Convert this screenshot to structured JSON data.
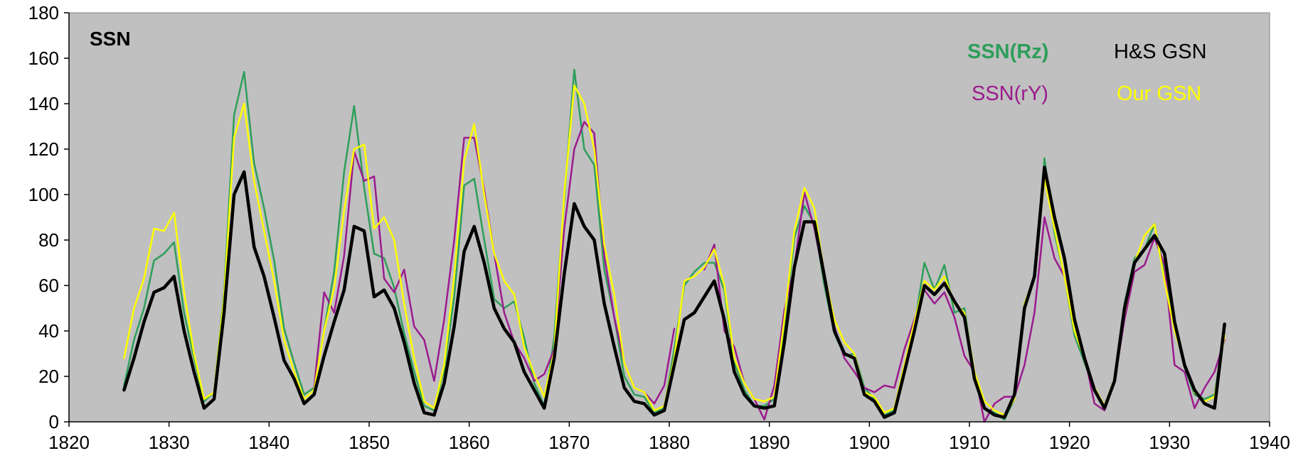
{
  "chart_data": {
    "type": "line",
    "title": "",
    "xlabel": "",
    "ylabel": "",
    "panel_label": "SSN",
    "xlim": [
      1820,
      1940
    ],
    "ylim": [
      0,
      180
    ],
    "xticks": [
      1820,
      1830,
      1840,
      1850,
      1860,
      1870,
      1880,
      1890,
      1900,
      1910,
      1920,
      1930,
      1940
    ],
    "yticks": [
      0,
      20,
      40,
      60,
      80,
      100,
      120,
      140,
      160,
      180
    ],
    "plot_background": "#c0c0c0",
    "grid": false,
    "legend": {
      "placement": "top-right",
      "entries": [
        {
          "name": "SSN(Rz)",
          "color": "#2e9e5a",
          "bold": true
        },
        {
          "name": "H&S GSN",
          "color": "#000000",
          "bold": false
        },
        {
          "name": "SSN(rY)",
          "color": "#9b1b8e",
          "bold": false
        },
        {
          "name": "Our GSN",
          "color": "#ffff00",
          "bold": false
        }
      ]
    },
    "series": [
      {
        "name": "SSN(Rz)",
        "color": "#2e9e5a",
        "width": 2.5,
        "x": [
          1825.5,
          1826.5,
          1827.5,
          1828.5,
          1829.5,
          1830.5,
          1831.5,
          1832.5,
          1833.5,
          1834.5,
          1835.5,
          1836.5,
          1837.5,
          1838.5,
          1839.5,
          1840.5,
          1841.5,
          1842.5,
          1843.5,
          1844.5,
          1845.5,
          1846.5,
          1847.5,
          1848.5,
          1849.5,
          1850.5,
          1851.5,
          1852.5,
          1853.5,
          1854.5,
          1855.5,
          1856.5,
          1857.5,
          1858.5,
          1859.5,
          1860.5,
          1861.5,
          1862.5,
          1863.5,
          1864.5,
          1865.5,
          1866.5,
          1867.5,
          1868.5,
          1869.5,
          1870.5,
          1871.5,
          1872.5,
          1873.5,
          1874.5,
          1875.5,
          1876.5,
          1877.5,
          1878.5,
          1879.5,
          1880.5,
          1881.5,
          1882.5,
          1883.5,
          1884.5,
          1885.5,
          1886.5,
          1887.5,
          1888.5,
          1889.5,
          1890.5,
          1891.5,
          1892.5,
          1893.5,
          1894.5,
          1895.5,
          1896.5,
          1897.5,
          1898.5,
          1899.5,
          1900.5,
          1901.5,
          1902.5,
          1903.5,
          1904.5,
          1905.5,
          1906.5,
          1907.5,
          1908.5,
          1909.5,
          1910.5,
          1911.5,
          1912.5,
          1913.5,
          1914.5,
          1915.5,
          1916.5,
          1917.5,
          1918.5,
          1919.5,
          1920.5,
          1921.5,
          1922.5,
          1923.5,
          1924.5,
          1925.5,
          1926.5,
          1927.5,
          1928.5,
          1929.5,
          1930.5,
          1931.5,
          1932.5,
          1933.5,
          1934.5,
          1935.5
        ],
        "y": [
          16,
          36,
          50,
          71,
          74,
          79,
          48,
          28,
          9,
          13,
          57,
          135,
          154,
          114,
          94,
          71,
          41,
          26,
          12,
          15,
          40,
          66,
          110,
          139,
          103,
          74,
          72,
          59,
          39,
          22,
          7,
          5,
          23,
          55,
          104,
          107,
          80,
          54,
          50,
          53,
          37,
          17,
          7,
          37,
          98,
          155,
          120,
          113,
          67,
          46,
          20,
          12,
          11,
          4,
          6,
          32,
          60,
          66,
          70,
          70,
          58,
          26,
          14,
          7,
          7,
          10,
          42,
          81,
          95,
          87,
          60,
          39,
          29,
          30,
          15,
          10,
          3,
          5,
          24,
          42,
          70,
          58,
          69,
          48,
          50,
          20,
          6,
          4,
          1,
          10,
          52,
          64,
          116,
          83,
          64,
          38,
          26,
          14,
          6,
          17,
          52,
          72,
          76,
          87,
          65,
          42,
          24,
          12,
          10,
          12,
          40
        ]
      },
      {
        "name": "SSN(rY)",
        "color": "#9b1b8e",
        "width": 2.5,
        "x": [
          1844.5,
          1845.5,
          1846.5,
          1847.5,
          1848.5,
          1849.5,
          1850.5,
          1851.5,
          1852.5,
          1853.5,
          1854.5,
          1855.5,
          1856.5,
          1857.5,
          1858.5,
          1859.5,
          1860.5,
          1861.5,
          1862.5,
          1863.5,
          1864.5,
          1865.5,
          1866.5,
          1867.5,
          1868.5,
          1869.5,
          1870.5,
          1871.5,
          1872.5,
          1873.5,
          1874.5,
          1875.5,
          1876.5,
          1877.5,
          1878.5,
          1879.5,
          1880.5,
          null,
          1883.5,
          1884.5,
          1885.5,
          1886.5,
          1887.5,
          1888.5,
          1889.5,
          1890.5,
          1891.5,
          1892.5,
          1893.5,
          1894.5,
          1895.5,
          1896.5,
          1897.5,
          1898.5,
          1899.5,
          1900.5,
          1901.5,
          1902.5,
          1903.5,
          1904.5,
          1905.5,
          1906.5,
          1907.5,
          1908.5,
          1909.5,
          1910.5,
          1911.5,
          1912.5,
          1913.5,
          1914.5,
          1915.5,
          1916.5,
          1917.5,
          1918.5,
          1919.5,
          1920.5,
          1921.5,
          1922.5,
          1923.5,
          1924.5,
          1925.5,
          1926.5,
          1927.5,
          1928.5,
          1929.5,
          1930.5,
          1931.5,
          1932.5,
          1933.5,
          1934.5,
          1935.5
        ],
        "y": [
          15,
          57,
          48,
          73,
          119,
          106,
          108,
          63,
          57,
          67,
          42,
          36,
          18,
          45,
          80,
          125,
          125,
          102,
          74,
          48,
          35,
          28,
          18,
          21,
          32,
          85,
          120,
          132,
          127,
          73,
          46,
          26,
          15,
          13,
          8,
          16,
          41,
          null,
          67,
          78,
          40,
          33,
          17,
          10,
          1,
          16,
          49,
          68,
          101,
          85,
          63,
          42,
          28,
          22,
          15,
          13,
          16,
          15,
          32,
          45,
          58,
          52,
          57,
          46,
          29,
          22,
          0,
          8,
          11,
          11,
          25,
          48,
          90,
          72,
          64,
          45,
          29,
          8,
          5,
          18,
          45,
          66,
          69,
          81,
          69,
          25,
          22,
          6,
          15,
          22,
          36
        ]
      },
      {
        "name": "Our GSN",
        "color": "#ffff00",
        "width": 2.5,
        "x": [
          1825.5,
          1826.5,
          1827.5,
          1828.5,
          1829.5,
          1830.5,
          1831.5,
          1832.5,
          1833.5,
          1834.5,
          1835.5,
          1836.5,
          1837.5,
          1838.5,
          1839.5,
          1840.5,
          1841.5,
          1842.5,
          1843.5,
          1844.5,
          1845.5,
          1846.5,
          1847.5,
          1848.5,
          1849.5,
          1850.5,
          1851.5,
          1852.5,
          1853.5,
          1854.5,
          1855.5,
          1856.5,
          1857.5,
          1858.5,
          1859.5,
          1860.5,
          1861.5,
          1862.5,
          1863.5,
          1864.5,
          1865.5,
          1866.5,
          1867.5,
          1868.5,
          1869.5,
          1870.5,
          1871.5,
          1872.5,
          1873.5,
          1874.5,
          1875.5,
          1876.5,
          1877.5,
          1878.5,
          1879.5,
          1880.5,
          1881.5,
          1882.5,
          1883.5,
          1884.5,
          1885.5,
          1886.5,
          1887.5,
          1888.5,
          1889.5,
          1890.5,
          1891.5,
          1892.5,
          1893.5,
          1894.5,
          1895.5,
          1896.5,
          1897.5,
          1898.5,
          1899.5,
          1900.5,
          1901.5,
          1902.5,
          1903.5,
          1904.5,
          1905.5,
          1906.5,
          1907.5,
          1908.5,
          1909.5,
          1910.5,
          1911.5,
          1912.5,
          1913.5,
          1914.5,
          1915.5,
          1916.5,
          1917.5,
          1918.5,
          1919.5,
          1920.5,
          1921.5,
          1922.5,
          1923.5,
          1924.5,
          1925.5,
          1926.5,
          1927.5,
          1928.5,
          1929.5,
          1930.5,
          1931.5,
          1932.5,
          1933.5,
          1934.5,
          1935.5
        ],
        "y": [
          28,
          50,
          63,
          85,
          84,
          92,
          57,
          30,
          10,
          13,
          55,
          125,
          140,
          106,
          84,
          62,
          36,
          22,
          10,
          14,
          40,
          59,
          93,
          120,
          122,
          85,
          90,
          80,
          52,
          28,
          9,
          6,
          25,
          64,
          115,
          131,
          100,
          74,
          62,
          56,
          33,
          21,
          11,
          31,
          100,
          148,
          140,
          120,
          78,
          56,
          26,
          15,
          13,
          5,
          7,
          28,
          62,
          64,
          68,
          76,
          60,
          28,
          17,
          10,
          9,
          11,
          45,
          84,
          103,
          94,
          65,
          45,
          35,
          30,
          13,
          11,
          4,
          6,
          25,
          44,
          62,
          58,
          64,
          52,
          48,
          22,
          9,
          5,
          3,
          10,
          52,
          64,
          107,
          85,
          64,
          40,
          28,
          15,
          7,
          19,
          48,
          70,
          82,
          87,
          62,
          40,
          26,
          13,
          9,
          11,
          38
        ]
      },
      {
        "name": "H&S GSN",
        "color": "#000000",
        "width": 4.5,
        "x": [
          1825.5,
          1826.5,
          1827.5,
          1828.5,
          1829.5,
          1830.5,
          1831.5,
          1832.5,
          1833.5,
          1834.5,
          1835.5,
          1836.5,
          1837.5,
          1838.5,
          1839.5,
          1840.5,
          1841.5,
          1842.5,
          1843.5,
          1844.5,
          1845.5,
          1846.5,
          1847.5,
          1848.5,
          1849.5,
          1850.5,
          1851.5,
          1852.5,
          1853.5,
          1854.5,
          1855.5,
          1856.5,
          1857.5,
          1858.5,
          1859.5,
          1860.5,
          1861.5,
          1862.5,
          1863.5,
          1864.5,
          1865.5,
          1866.5,
          1867.5,
          1868.5,
          1869.5,
          1870.5,
          1871.5,
          1872.5,
          1873.5,
          1874.5,
          1875.5,
          1876.5,
          1877.5,
          1878.5,
          1879.5,
          1880.5,
          1881.5,
          1882.5,
          1883.5,
          1884.5,
          1885.5,
          1886.5,
          1887.5,
          1888.5,
          1889.5,
          1890.5,
          1891.5,
          1892.5,
          1893.5,
          1894.5,
          1895.5,
          1896.5,
          1897.5,
          1898.5,
          1899.5,
          1900.5,
          1901.5,
          1902.5,
          1903.5,
          1904.5,
          1905.5,
          1906.5,
          1907.5,
          1908.5,
          1909.5,
          1910.5,
          1911.5,
          1912.5,
          1913.5,
          1914.5,
          1915.5,
          1916.5,
          1917.5,
          1918.5,
          1919.5,
          1920.5,
          1921.5,
          1922.5,
          1923.5,
          1924.5,
          1925.5,
          1926.5,
          1927.5,
          1928.5,
          1929.5,
          1930.5,
          1931.5,
          1932.5,
          1933.5,
          1934.5,
          1935.5
        ],
        "y": [
          14,
          28,
          44,
          57,
          59,
          64,
          40,
          22,
          6,
          10,
          48,
          100,
          110,
          77,
          64,
          46,
          27,
          19,
          8,
          12,
          29,
          44,
          58,
          86,
          84,
          55,
          58,
          50,
          35,
          17,
          4,
          3,
          17,
          42,
          75,
          86,
          70,
          50,
          41,
          35,
          22,
          14,
          6,
          28,
          65,
          96,
          86,
          80,
          52,
          33,
          15,
          9,
          8,
          3,
          5,
          25,
          45,
          48,
          55,
          62,
          45,
          22,
          12,
          7,
          6,
          7,
          35,
          68,
          88,
          88,
          64,
          40,
          30,
          28,
          12,
          9,
          2,
          4,
          22,
          40,
          60,
          56,
          61,
          53,
          46,
          19,
          6,
          3,
          2,
          12,
          50,
          64,
          112,
          90,
          72,
          45,
          28,
          14,
          6,
          18,
          50,
          70,
          76,
          82,
          74,
          44,
          25,
          14,
          8,
          6,
          43
        ]
      }
    ]
  }
}
